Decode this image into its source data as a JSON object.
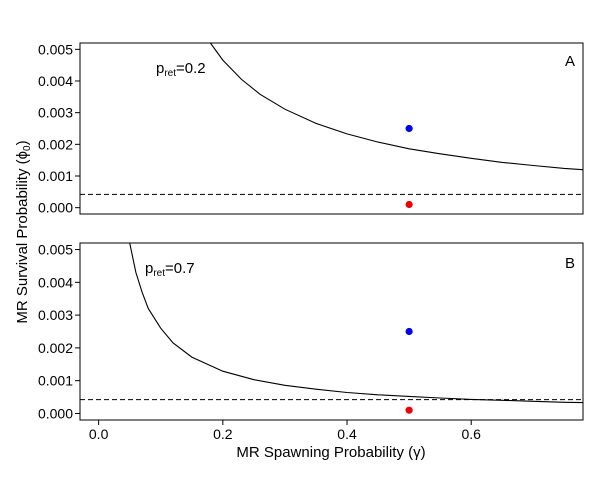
{
  "chart_data": {
    "type": "line",
    "xlabel": "MR Spawning Probability  (γ)",
    "ylabel": "MR Survival Probability  (ϕ",
    "ylabel_sub": "0",
    "ylabel_close": ")",
    "xlim": [
      -0.03,
      0.78
    ],
    "ylim": [
      -0.0002,
      0.0052
    ],
    "x_ticks": [
      0.0,
      0.2,
      0.4,
      0.6
    ],
    "x_tick_labels": [
      "0.0",
      "0.2",
      "0.4",
      "0.6"
    ],
    "y_ticks": [
      0.0,
      0.001,
      0.002,
      0.003,
      0.004,
      0.005
    ],
    "y_tick_labels": [
      "0.000",
      "0.001",
      "0.002",
      "0.003",
      "0.004",
      "0.005"
    ],
    "grid": false,
    "panels": [
      {
        "label": "A",
        "annotation_main": "p",
        "annotation_sub": "ret",
        "annotation_value": "=0.2",
        "curve": {
          "x": [
            0.18,
            0.2,
            0.23,
            0.26,
            0.3,
            0.35,
            0.4,
            0.45,
            0.5,
            0.55,
            0.6,
            0.65,
            0.7,
            0.75,
            0.78
          ],
          "y": [
            0.0052,
            0.00466,
            0.00405,
            0.00358,
            0.00311,
            0.00266,
            0.00233,
            0.00207,
            0.00186,
            0.0017,
            0.00156,
            0.00143,
            0.00133,
            0.00124,
            0.0012
          ]
        },
        "threshold": 0.00042,
        "points": [
          {
            "x": 0.5,
            "y": 0.0025,
            "color": "#0000ee"
          },
          {
            "x": 0.5,
            "y": 0.0001,
            "color": "#ee0000"
          }
        ]
      },
      {
        "label": "B",
        "annotation_main": "p",
        "annotation_sub": "ret",
        "annotation_value": "=0.7",
        "curve": {
          "x": [
            0.05,
            0.06,
            0.07,
            0.08,
            0.1,
            0.12,
            0.15,
            0.2,
            0.25,
            0.3,
            0.35,
            0.4,
            0.45,
            0.5,
            0.55,
            0.6,
            0.65,
            0.7,
            0.75,
            0.78
          ],
          "y": [
            0.0052,
            0.0043,
            0.0037,
            0.0032,
            0.0026,
            0.00215,
            0.00172,
            0.00129,
            0.00103,
            0.00086,
            0.00074,
            0.00064,
            0.00057,
            0.00052,
            0.00047,
            0.00043,
            0.0004,
            0.00037,
            0.00034,
            0.00033
          ]
        },
        "threshold": 0.00042,
        "points": [
          {
            "x": 0.5,
            "y": 0.0025,
            "color": "#0000ee"
          },
          {
            "x": 0.5,
            "y": 0.0001,
            "color": "#ee0000"
          }
        ]
      }
    ]
  }
}
